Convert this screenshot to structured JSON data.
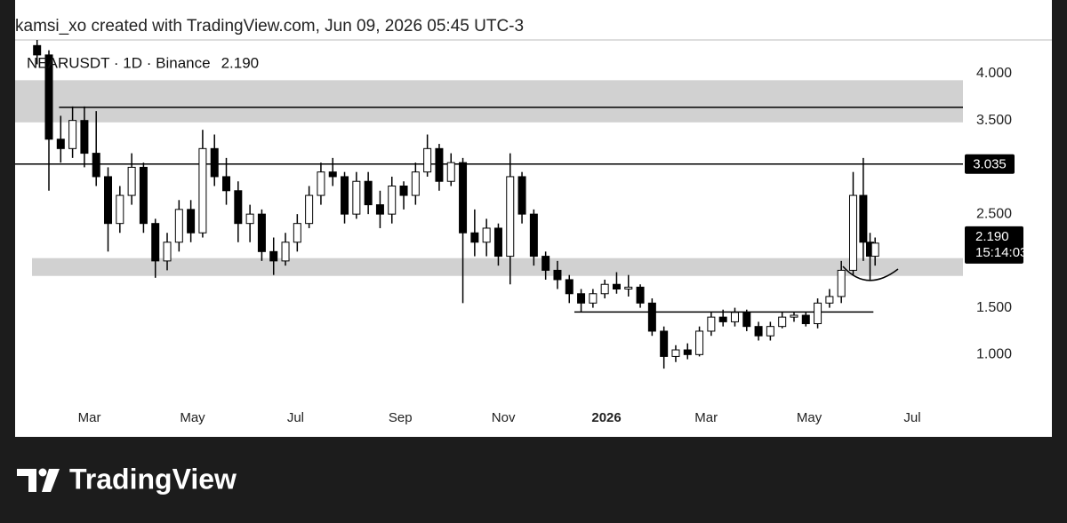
{
  "header": "kamsi_xo created with TradingView.com, Jun 09, 2026 05:45 UTC-3",
  "brand": "TradingView",
  "chart_data": {
    "type": "candlestick",
    "title": "NEARUSDT · 1D · Binance",
    "last_price_label": "2.190",
    "countdown": "15:14:03",
    "xlim": [
      -44,
      517
    ],
    "ylim": [
      0.14,
      4.36
    ],
    "xticks": [
      {
        "value": 0,
        "label": "Mar"
      },
      {
        "value": 61,
        "label": "May"
      },
      {
        "value": 122,
        "label": "Jul"
      },
      {
        "value": 184,
        "label": "Sep"
      },
      {
        "value": 245,
        "label": "Nov"
      },
      {
        "value": 306,
        "label": "2026"
      },
      {
        "value": 365,
        "label": "Mar"
      },
      {
        "value": 426,
        "label": "May"
      },
      {
        "value": 487,
        "label": "Jul"
      }
    ],
    "yticks": [
      {
        "value": 4,
        "label": "4.000"
      },
      {
        "value": 3.5,
        "label": "3.500"
      },
      {
        "value": 2.5,
        "label": "2.500"
      },
      {
        "value": 1.5,
        "label": "1.500"
      },
      {
        "value": 1,
        "label": "1.000"
      }
    ],
    "zones": [
      {
        "from": -44,
        "low": 3.48,
        "high": 3.93
      },
      {
        "from": -34,
        "low": 1.84,
        "high": 2.03
      }
    ],
    "hlines": [
      {
        "from": -18,
        "to": 517,
        "price": 3.64
      },
      {
        "from": -44,
        "to": 517,
        "price": 3.035,
        "labeled": true
      },
      {
        "from": 287,
        "to": 464,
        "price": 1.455
      }
    ],
    "candles": [
      {
        "x": -31,
        "open": 4.3,
        "high": 4.36,
        "low": 4.1,
        "close": 4.2
      },
      {
        "x": -24,
        "open": 4.2,
        "high": 4.25,
        "low": 2.75,
        "close": 3.3
      },
      {
        "x": -17,
        "open": 3.3,
        "high": 3.55,
        "low": 3.05,
        "close": 3.2
      },
      {
        "x": -10,
        "open": 3.2,
        "high": 3.65,
        "low": 3.1,
        "close": 3.5
      },
      {
        "x": -3,
        "open": 3.5,
        "high": 3.65,
        "low": 3.0,
        "close": 3.15
      },
      {
        "x": 4,
        "open": 3.15,
        "high": 3.6,
        "low": 2.8,
        "close": 2.9
      },
      {
        "x": 11,
        "open": 2.9,
        "high": 3.0,
        "low": 2.1,
        "close": 2.4
      },
      {
        "x": 18,
        "open": 2.4,
        "high": 2.8,
        "low": 2.3,
        "close": 2.7
      },
      {
        "x": 25,
        "open": 2.7,
        "high": 3.15,
        "low": 2.6,
        "close": 3.0
      },
      {
        "x": 32,
        "open": 3.0,
        "high": 3.05,
        "low": 2.3,
        "close": 2.4
      },
      {
        "x": 39,
        "open": 2.4,
        "high": 2.45,
        "low": 1.82,
        "close": 2.0
      },
      {
        "x": 46,
        "open": 2.0,
        "high": 2.3,
        "low": 1.9,
        "close": 2.2
      },
      {
        "x": 53,
        "open": 2.2,
        "high": 2.65,
        "low": 2.1,
        "close": 2.55
      },
      {
        "x": 60,
        "open": 2.55,
        "high": 2.65,
        "low": 2.2,
        "close": 2.3
      },
      {
        "x": 67,
        "open": 2.3,
        "high": 3.4,
        "low": 2.25,
        "close": 3.2
      },
      {
        "x": 74,
        "open": 3.2,
        "high": 3.35,
        "low": 2.8,
        "close": 2.9
      },
      {
        "x": 81,
        "open": 2.9,
        "high": 3.1,
        "low": 2.6,
        "close": 2.75
      },
      {
        "x": 88,
        "open": 2.75,
        "high": 2.85,
        "low": 2.2,
        "close": 2.4
      },
      {
        "x": 95,
        "open": 2.4,
        "high": 2.6,
        "low": 2.2,
        "close": 2.5
      },
      {
        "x": 102,
        "open": 2.5,
        "high": 2.55,
        "low": 2.0,
        "close": 2.1
      },
      {
        "x": 109,
        "open": 2.1,
        "high": 2.25,
        "low": 1.85,
        "close": 2.0
      },
      {
        "x": 116,
        "open": 2.0,
        "high": 2.3,
        "low": 1.95,
        "close": 2.2
      },
      {
        "x": 123,
        "open": 2.2,
        "high": 2.5,
        "low": 2.1,
        "close": 2.4
      },
      {
        "x": 130,
        "open": 2.4,
        "high": 2.8,
        "low": 2.35,
        "close": 2.7
      },
      {
        "x": 137,
        "open": 2.7,
        "high": 3.05,
        "low": 2.6,
        "close": 2.95
      },
      {
        "x": 144,
        "open": 2.95,
        "high": 3.1,
        "low": 2.8,
        "close": 2.9
      },
      {
        "x": 151,
        "open": 2.9,
        "high": 2.95,
        "low": 2.4,
        "close": 2.5
      },
      {
        "x": 158,
        "open": 2.5,
        "high": 2.95,
        "low": 2.45,
        "close": 2.85
      },
      {
        "x": 165,
        "open": 2.85,
        "high": 2.95,
        "low": 2.5,
        "close": 2.6
      },
      {
        "x": 172,
        "open": 2.6,
        "high": 2.75,
        "low": 2.35,
        "close": 2.5
      },
      {
        "x": 179,
        "open": 2.5,
        "high": 2.9,
        "low": 2.4,
        "close": 2.8
      },
      {
        "x": 186,
        "open": 2.8,
        "high": 2.85,
        "low": 2.55,
        "close": 2.7
      },
      {
        "x": 193,
        "open": 2.7,
        "high": 3.05,
        "low": 2.6,
        "close": 2.95
      },
      {
        "x": 200,
        "open": 2.95,
        "high": 3.35,
        "low": 2.9,
        "close": 3.2
      },
      {
        "x": 207,
        "open": 3.2,
        "high": 3.25,
        "low": 2.75,
        "close": 2.85
      },
      {
        "x": 214,
        "open": 2.85,
        "high": 3.15,
        "low": 2.8,
        "close": 3.05
      },
      {
        "x": 221,
        "open": 3.05,
        "high": 3.1,
        "low": 1.55,
        "close": 2.3
      },
      {
        "x": 228,
        "open": 2.3,
        "high": 2.55,
        "low": 2.05,
        "close": 2.2
      },
      {
        "x": 235,
        "open": 2.2,
        "high": 2.45,
        "low": 2.05,
        "close": 2.35
      },
      {
        "x": 242,
        "open": 2.35,
        "high": 2.4,
        "low": 1.95,
        "close": 2.05
      },
      {
        "x": 249,
        "open": 2.05,
        "high": 3.15,
        "low": 1.75,
        "close": 2.9
      },
      {
        "x": 256,
        "open": 2.9,
        "high": 2.95,
        "low": 2.4,
        "close": 2.5
      },
      {
        "x": 263,
        "open": 2.5,
        "high": 2.55,
        "low": 1.95,
        "close": 2.05
      },
      {
        "x": 270,
        "open": 2.05,
        "high": 2.1,
        "low": 1.8,
        "close": 1.9
      },
      {
        "x": 277,
        "open": 1.9,
        "high": 2.0,
        "low": 1.7,
        "close": 1.8
      },
      {
        "x": 284,
        "open": 1.8,
        "high": 1.85,
        "low": 1.55,
        "close": 1.65
      },
      {
        "x": 291,
        "open": 1.65,
        "high": 1.7,
        "low": 1.45,
        "close": 1.55
      },
      {
        "x": 298,
        "open": 1.55,
        "high": 1.7,
        "low": 1.5,
        "close": 1.65
      },
      {
        "x": 305,
        "open": 1.65,
        "high": 1.8,
        "low": 1.6,
        "close": 1.75
      },
      {
        "x": 312,
        "open": 1.75,
        "high": 1.88,
        "low": 1.65,
        "close": 1.7
      },
      {
        "x": 319,
        "open": 1.7,
        "high": 1.85,
        "low": 1.62,
        "close": 1.72
      },
      {
        "x": 326,
        "open": 1.72,
        "high": 1.75,
        "low": 1.5,
        "close": 1.55
      },
      {
        "x": 333,
        "open": 1.55,
        "high": 1.6,
        "low": 1.2,
        "close": 1.25
      },
      {
        "x": 340,
        "open": 1.25,
        "high": 1.3,
        "low": 0.85,
        "close": 0.98
      },
      {
        "x": 347,
        "open": 0.98,
        "high": 1.1,
        "low": 0.92,
        "close": 1.05
      },
      {
        "x": 354,
        "open": 1.05,
        "high": 1.12,
        "low": 0.95,
        "close": 1.0
      },
      {
        "x": 361,
        "open": 1.0,
        "high": 1.3,
        "low": 0.98,
        "close": 1.25
      },
      {
        "x": 368,
        "open": 1.25,
        "high": 1.45,
        "low": 1.2,
        "close": 1.4
      },
      {
        "x": 375,
        "open": 1.4,
        "high": 1.48,
        "low": 1.3,
        "close": 1.35
      },
      {
        "x": 382,
        "open": 1.35,
        "high": 1.5,
        "low": 1.3,
        "close": 1.45
      },
      {
        "x": 389,
        "open": 1.45,
        "high": 1.48,
        "low": 1.25,
        "close": 1.3
      },
      {
        "x": 396,
        "open": 1.3,
        "high": 1.35,
        "low": 1.15,
        "close": 1.2
      },
      {
        "x": 403,
        "open": 1.2,
        "high": 1.35,
        "low": 1.15,
        "close": 1.3
      },
      {
        "x": 410,
        "open": 1.3,
        "high": 1.45,
        "low": 1.28,
        "close": 1.4
      },
      {
        "x": 417,
        "open": 1.4,
        "high": 1.45,
        "low": 1.35,
        "close": 1.42
      },
      {
        "x": 424,
        "open": 1.42,
        "high": 1.45,
        "low": 1.3,
        "close": 1.33
      },
      {
        "x": 431,
        "open": 1.33,
        "high": 1.6,
        "low": 1.28,
        "close": 1.55
      },
      {
        "x": 438,
        "open": 1.55,
        "high": 1.7,
        "low": 1.5,
        "close": 1.62
      },
      {
        "x": 445,
        "open": 1.62,
        "high": 2.0,
        "low": 1.55,
        "close": 1.9
      },
      {
        "x": 452,
        "open": 1.9,
        "high": 2.95,
        "low": 1.85,
        "close": 2.7
      },
      {
        "x": 458,
        "open": 2.7,
        "high": 3.1,
        "low": 2.0,
        "close": 2.2
      },
      {
        "x": 462,
        "open": 2.2,
        "high": 2.3,
        "low": 1.8,
        "close": 2.05
      },
      {
        "x": 465,
        "open": 2.05,
        "high": 2.25,
        "low": 1.95,
        "close": 2.19
      }
    ]
  }
}
